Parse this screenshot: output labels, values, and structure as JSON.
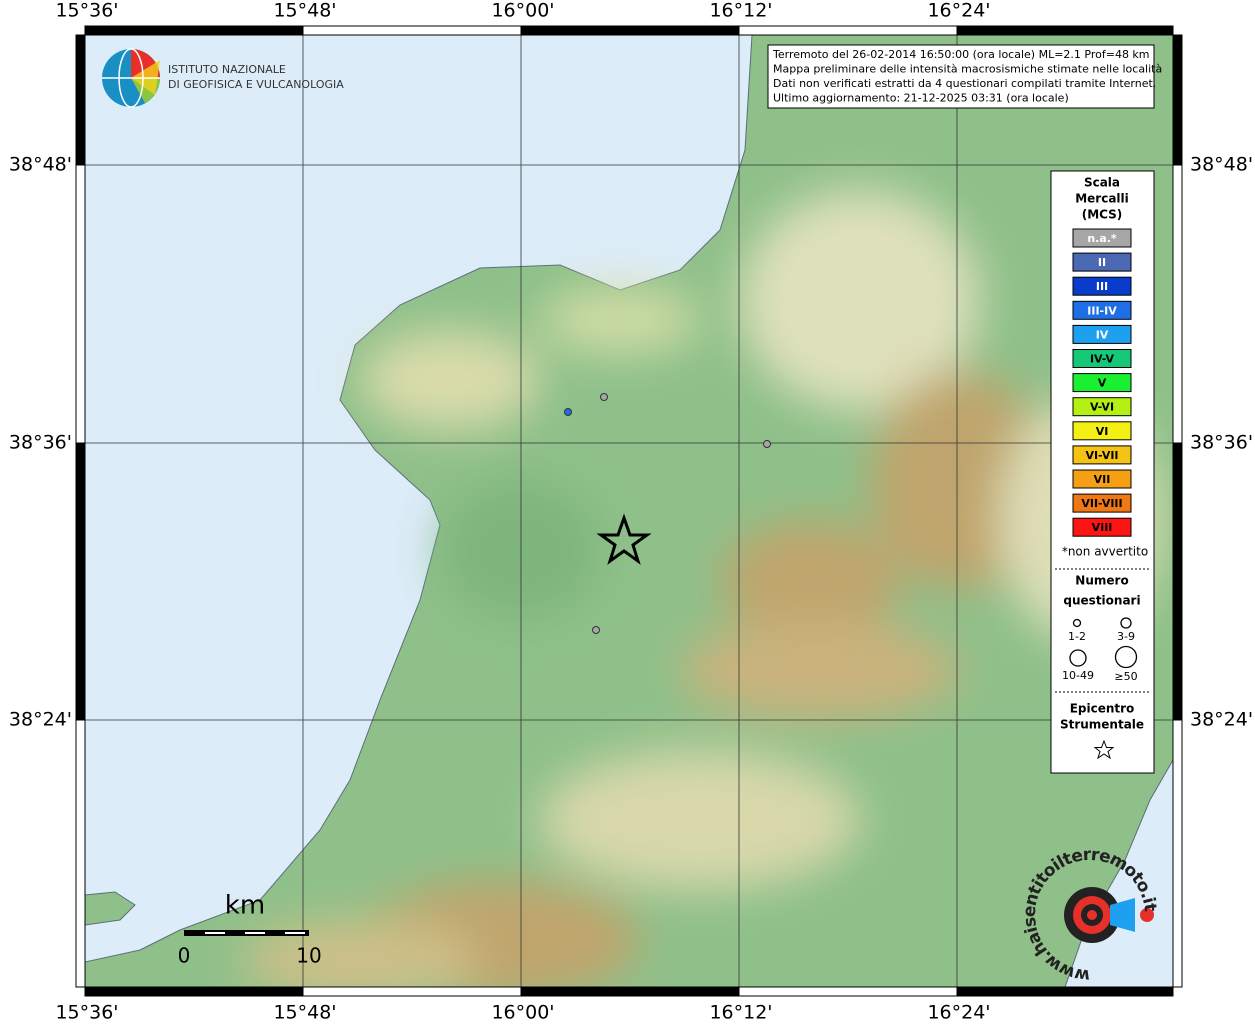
{
  "header": {
    "logo_line1": "ISTITUTO NAZIONALE",
    "logo_line2": "DI GEOFISICA E VULCANOLOGIA"
  },
  "info": [
    "Terremoto del 26-02-2014 16:50:00 (ora locale) ML=2.1 Prof=48 km",
    "Mappa preliminare delle intensità macrosismiche stimate nelle località",
    "Dati non verificati estratti da 4 questionari compilati tramite Internet.",
    "Ultimo aggiornamento: 21-12-2025 03:31 (ora locale)"
  ],
  "axes": {
    "lon_labels": [
      "15°36'",
      "15°48'",
      "16°00'",
      "16°12'",
      "16°24'"
    ],
    "lat_labels": [
      "38°48'",
      "38°36'",
      "38°24'"
    ]
  },
  "legend": {
    "title_lines": [
      "Scala",
      "Mercalli",
      "(MCS)"
    ],
    "classes": [
      {
        "label": "n.a.*",
        "color": "#a6a6a6",
        "text_color": "#ffffff"
      },
      {
        "label": "II",
        "color": "#4a68b4",
        "text_color": "#ffffff"
      },
      {
        "label": "III",
        "color": "#0a3ccc",
        "text_color": "#ffffff"
      },
      {
        "label": "III-IV",
        "color": "#1e6ee6",
        "text_color": "#ffffff"
      },
      {
        "label": "IV",
        "color": "#1ea0f0",
        "text_color": "#ffffff"
      },
      {
        "label": "IV-V",
        "color": "#14c878",
        "text_color": "#000000"
      },
      {
        "label": "V",
        "color": "#19f032",
        "text_color": "#000000"
      },
      {
        "label": "V-VI",
        "color": "#b4f014",
        "text_color": "#000000"
      },
      {
        "label": "VI",
        "color": "#f5f014",
        "text_color": "#000000"
      },
      {
        "label": "VI-VII",
        "color": "#f5c314",
        "text_color": "#000000"
      },
      {
        "label": "VII",
        "color": "#f5a014",
        "text_color": "#000000"
      },
      {
        "label": "VII-VIII",
        "color": "#f07814",
        "text_color": "#000000"
      },
      {
        "label": "VIII",
        "color": "#ff1414",
        "text_color": "#000000"
      }
    ],
    "note": "*non avvertito",
    "count_title_lines": [
      "Numero",
      "questionari"
    ],
    "counts": [
      "1-2",
      "3-9",
      "10-49",
      "≥50"
    ],
    "epicenter_lines": [
      "Epicentro",
      "Strumentale"
    ]
  },
  "scale_bar": {
    "unit": "km",
    "labels": [
      "0",
      "10"
    ]
  },
  "watermark": "www.haisentitoilterremoto.it"
}
